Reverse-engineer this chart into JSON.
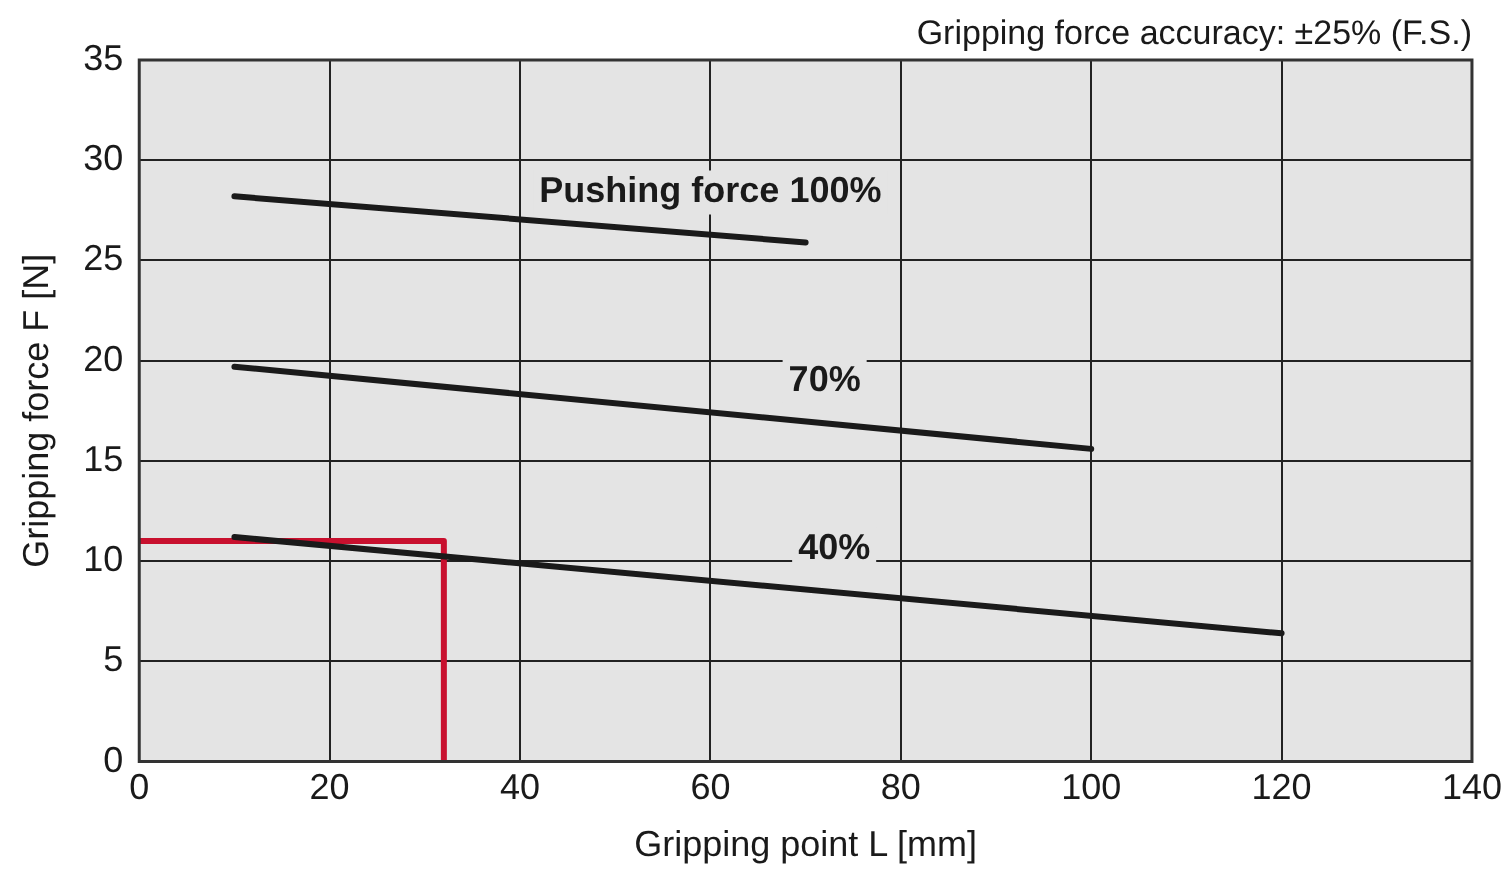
{
  "chart_data": {
    "type": "line",
    "xlabel": "Gripping point L [mm]",
    "ylabel": "Gripping force F [N]",
    "xlim": [
      0,
      140
    ],
    "xticks": [
      0,
      20,
      40,
      60,
      80,
      100,
      120,
      140
    ],
    "ylim": [
      0,
      35
    ],
    "yticks": [
      0,
      5,
      10,
      15,
      20,
      25,
      30,
      35
    ],
    "grid": true,
    "legend": false,
    "marker": "none",
    "line_style": "solid",
    "series": [
      {
        "color": "#1a1a1a",
        "x": [
          10,
          70
        ],
        "values": [
          28.2,
          25.9
        ]
      },
      {
        "color": "#1a1a1a",
        "x": [
          10,
          100
        ],
        "values": [
          19.7,
          15.6
        ]
      },
      {
        "color": "#1a1a1a",
        "x": [
          10,
          120
        ],
        "values": [
          11.2,
          6.4
        ]
      },
      {
        "color": "#c8102e",
        "x": [
          0,
          32,
          32
        ],
        "values": [
          11,
          11,
          0
        ]
      }
    ],
    "annotations": [
      "Gripping force accuracy: ±25% (F.S.)",
      {
        "text": "Pushing force 100%",
        "x": 60,
        "y": 26.3
      },
      {
        "text": "70%",
        "x": 72,
        "y": 16.9
      },
      {
        "text": "40%",
        "x": 73,
        "y": 8.5
      }
    ]
  }
}
